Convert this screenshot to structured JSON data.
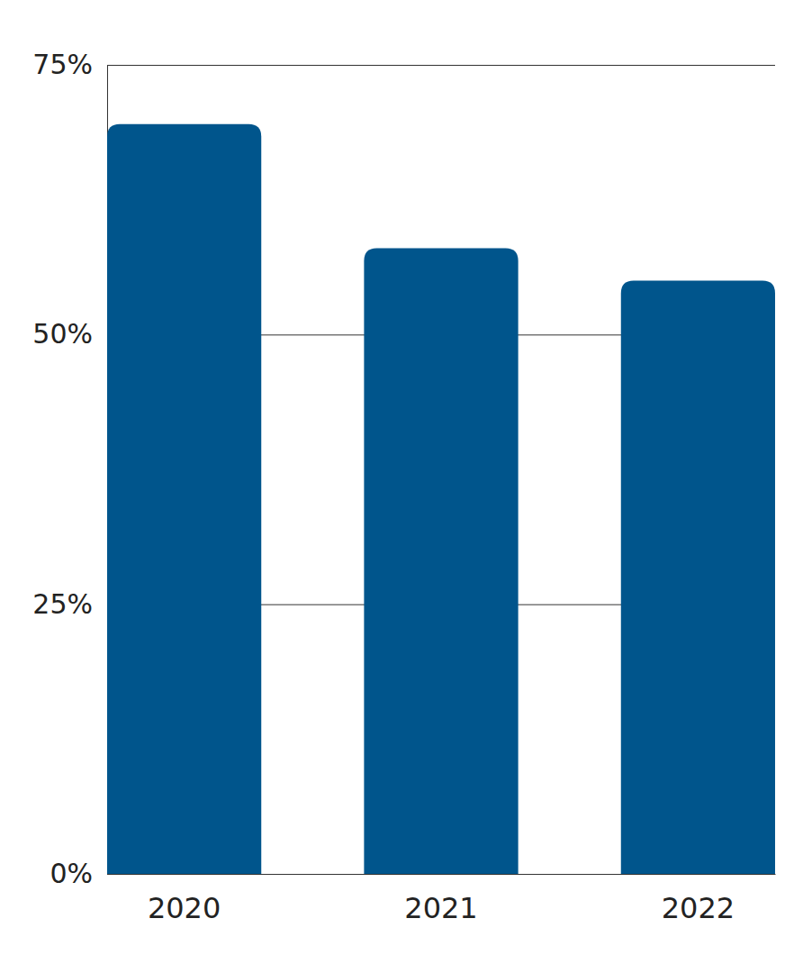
{
  "chart_data": {
    "type": "bar",
    "categories": [
      "2020",
      "2021",
      "2022"
    ],
    "values": [
      69.5,
      58,
      55
    ],
    "color": "#00558c",
    "ylim": [
      0,
      75
    ],
    "yticks": [
      {
        "value": 0,
        "label": "0%"
      },
      {
        "value": 25,
        "label": "25%"
      },
      {
        "value": 50,
        "label": "50%"
      },
      {
        "value": 75,
        "label": "75%"
      }
    ],
    "grid": true
  }
}
